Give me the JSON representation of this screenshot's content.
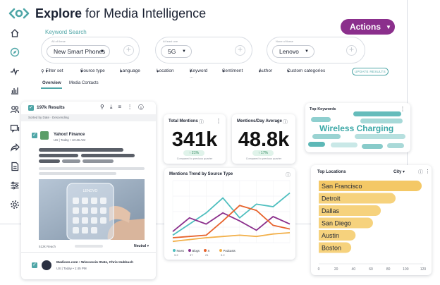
{
  "app": {
    "title_bold": "Explore",
    "title_rest": " for Media Intelligence",
    "actions_label": "Actions"
  },
  "colors": {
    "accent_purple": "#8b2f8c",
    "teal": "#4fa6a7",
    "news": "#4fbfbf",
    "blogs": "#8b2f8c",
    "x": "#e7632c",
    "podcasts": "#f2b04a",
    "bar_yellow": "#f6d27d"
  },
  "sidebar": {
    "icons": [
      "home-icon",
      "explore-icon",
      "pulse-icon",
      "bar-chart-icon",
      "people-icon",
      "messages-icon",
      "share-icon",
      "document-icon",
      "sliders-icon",
      "settings-icon"
    ]
  },
  "search": {
    "label": "Keyword Search",
    "groups": [
      {
        "caption": "All of these",
        "value": "New Smart Phones"
      },
      {
        "caption": "At least one",
        "value": "5G"
      },
      {
        "caption": "None of these",
        "value": "Lenovo"
      }
    ]
  },
  "filters": {
    "items": [
      "Filter set",
      "Source type",
      "Language",
      "Location",
      "Keyword",
      "Sentiment",
      "Author",
      "Custom categories"
    ],
    "more": "...",
    "update_label": "UPDATE RESULTS"
  },
  "tabs": [
    "Overview",
    "Media Contacts"
  ],
  "results": {
    "count": "197k Results",
    "sort": "Sorted by Date · Descending",
    "item1": {
      "source": "Yahoo! Finance",
      "meta": "US | Today • 10:46 AM"
    },
    "phone_screen": "LENOVO",
    "reach": "512k Reach",
    "reach_meta": "Neutral",
    "neutral": "Neutral",
    "item2": {
      "source": "Madison.com • Wisconsin State, Chris Hubbuch",
      "meta": "US | Today • 1:45 PM"
    }
  },
  "total_mentions": {
    "title": "Total Mentions",
    "value": "341k",
    "change": "↑ 21%",
    "caption": "Compared to previous quarter"
  },
  "mentions_day": {
    "title": "Mentions/Day Average",
    "value": "48.8k",
    "change": "↑ 17%",
    "caption": "Compared to previous quarter"
  },
  "top_keywords": {
    "title": "Top Keywords",
    "highlight": "Wireless Charging"
  },
  "top_locations": {
    "title": "Top Locations",
    "selector": "City",
    "axis_ticks": [
      "0",
      "20",
      "40",
      "60",
      "80",
      "100",
      "120"
    ]
  },
  "chart_data": [
    {
      "type": "bar",
      "title": "Top Locations",
      "orientation": "horizontal",
      "categories": [
        "San Francisco",
        "Detroit",
        "Dallas",
        "San Diego",
        "Austin",
        "Boston"
      ],
      "values": [
        118,
        88,
        71,
        62,
        42,
        37
      ],
      "xlim": [
        0,
        120
      ]
    },
    {
      "type": "line",
      "title": "Mentions Trend by Source Type",
      "x": [
        0,
        1,
        2,
        3,
        4,
        5,
        6,
        7
      ],
      "ylim": [
        0,
        100
      ],
      "series": [
        {
          "name": "News",
          "total": "9.2",
          "values": [
            12,
            30,
            48,
            72,
            40,
            62,
            58,
            80
          ]
        },
        {
          "name": "Blogs",
          "total": "37",
          "values": [
            18,
            40,
            30,
            48,
            35,
            20,
            42,
            30
          ]
        },
        {
          "name": "X",
          "total": "21",
          "values": [
            8,
            10,
            12,
            35,
            60,
            52,
            28,
            22
          ]
        },
        {
          "name": "Podcasts",
          "total": "9.2",
          "values": [
            2,
            5,
            8,
            10,
            12,
            10,
            14,
            16
          ]
        }
      ]
    }
  ]
}
